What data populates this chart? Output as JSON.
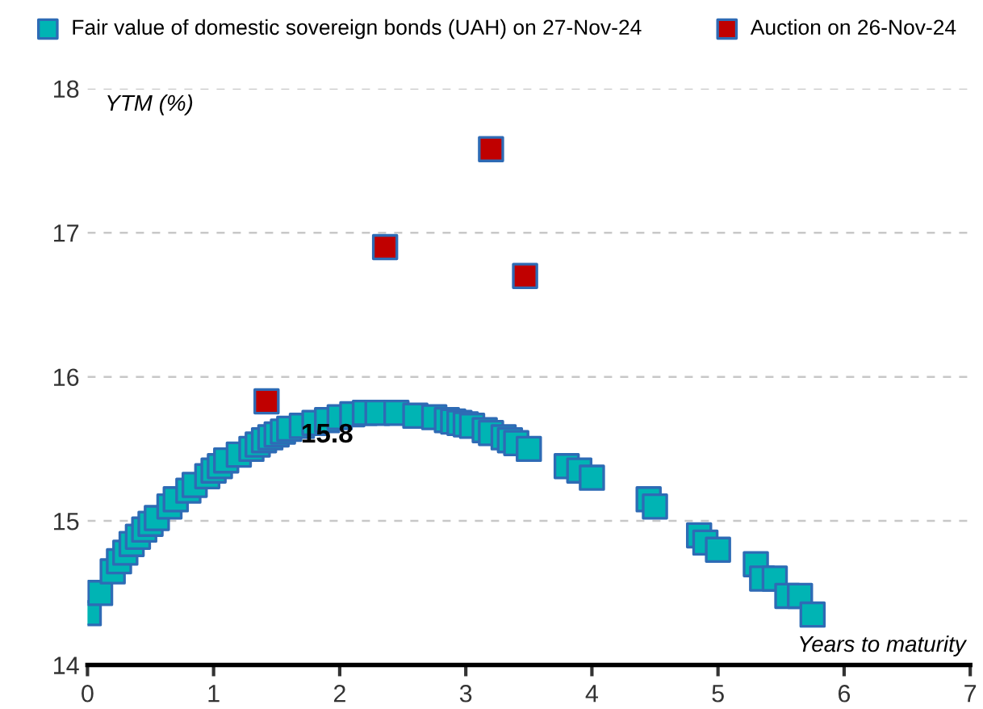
{
  "chart_data": {
    "type": "scatter",
    "xlabel": "Years to maturity",
    "ylabel": "YTM (%)",
    "xlim": [
      0,
      7
    ],
    "xticks": [
      0,
      1,
      2,
      3,
      4,
      5,
      6,
      7
    ],
    "ylim": [
      14,
      18
    ],
    "yticks": [
      14,
      15,
      16,
      17,
      18
    ],
    "grid": "y",
    "legend": "top",
    "marker": "square",
    "annotations": [
      {
        "text": "15.8",
        "x": 1.9,
        "y": 15.68
      }
    ],
    "series": [
      {
        "name": "Fair value of domestic sovereign bonds (UAH) on 27-Nov-24",
        "color": "#00b4b4",
        "x": [
          0.01,
          0.1,
          0.2,
          0.25,
          0.3,
          0.35,
          0.4,
          0.45,
          0.5,
          0.55,
          0.65,
          0.7,
          0.8,
          0.85,
          0.95,
          1.0,
          1.05,
          1.1,
          1.2,
          1.3,
          1.35,
          1.4,
          1.45,
          1.5,
          1.55,
          1.6,
          1.7,
          1.8,
          1.9,
          2.0,
          2.1,
          2.2,
          2.3,
          2.45,
          2.6,
          2.75,
          2.85,
          2.9,
          2.95,
          3.0,
          3.05,
          3.15,
          3.2,
          3.3,
          3.35,
          3.4,
          3.5,
          3.8,
          3.9,
          4.0,
          4.45,
          4.5,
          4.85,
          4.9,
          5.0,
          5.3,
          5.35,
          5.45,
          5.55,
          5.65,
          5.75
        ],
        "values": [
          14.36,
          14.5,
          14.65,
          14.72,
          14.78,
          14.84,
          14.89,
          14.94,
          14.98,
          15.02,
          15.1,
          15.15,
          15.21,
          15.25,
          15.31,
          15.35,
          15.38,
          15.42,
          15.46,
          15.5,
          15.53,
          15.56,
          15.58,
          15.6,
          15.62,
          15.64,
          15.66,
          15.68,
          15.7,
          15.72,
          15.74,
          15.75,
          15.75,
          15.75,
          15.73,
          15.72,
          15.7,
          15.69,
          15.68,
          15.67,
          15.66,
          15.63,
          15.61,
          15.58,
          15.56,
          15.54,
          15.5,
          15.38,
          15.35,
          15.3,
          15.15,
          15.1,
          14.9,
          14.85,
          14.8,
          14.7,
          14.6,
          14.6,
          14.48,
          14.48,
          14.35
        ]
      },
      {
        "name": "Auction on 26-Nov-24",
        "color": "#c00000",
        "x": [
          1.42,
          2.36,
          3.2,
          3.47
        ],
        "values": [
          15.83,
          16.9,
          17.58,
          16.7
        ]
      }
    ]
  }
}
